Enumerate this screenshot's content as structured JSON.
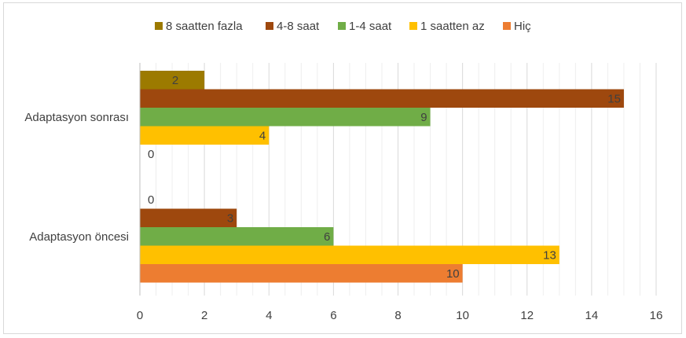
{
  "chart_data": {
    "type": "bar",
    "orientation": "horizontal",
    "categories": [
      "Adaptasyon sonrası",
      "Adaptasyon öncesi"
    ],
    "series": [
      {
        "name": "8 saatten fazla",
        "color": "#9c7a00",
        "values": [
          2,
          0
        ]
      },
      {
        "name": "4-8 saat",
        "color": "#9e480e",
        "values": [
          15,
          3
        ]
      },
      {
        "name": "1-4 saat",
        "color": "#70ad47",
        "values": [
          9,
          6
        ]
      },
      {
        "name": "1 saatten az",
        "color": "#ffc000",
        "values": [
          4,
          13
        ]
      },
      {
        "name": "Hiç",
        "color": "#ed7d31",
        "values": [
          0,
          10
        ]
      }
    ],
    "xlim": [
      0,
      16
    ],
    "xticks": [
      0,
      2,
      4,
      6,
      8,
      10,
      12,
      14,
      16
    ],
    "grid": true,
    "legend": "top",
    "data_labels": true
  }
}
